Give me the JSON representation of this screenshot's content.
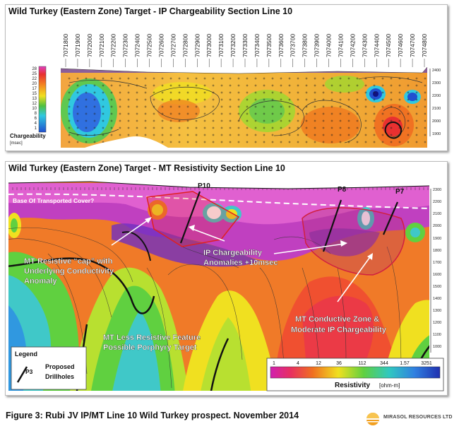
{
  "ip_panel": {
    "title": "Wild Turkey (Eastern Zone) Target  - IP Chargeability Section Line 10",
    "stations": [
      "7071800",
      "7071900",
      "7072000",
      "7072100",
      "7072200",
      "7072300",
      "7072400",
      "7072500",
      "7072600",
      "7072700",
      "7072800",
      "7072900",
      "7073000",
      "7073100",
      "7073200",
      "7073300",
      "7073400",
      "7073500",
      "7073600",
      "7073700",
      "7073800",
      "7073900",
      "7074000",
      "7074100",
      "7074200",
      "7074300",
      "7074400",
      "7074500",
      "7074600",
      "7074700",
      "7074800"
    ],
    "scale_values": [
      "28",
      "25",
      "22",
      "20",
      "17",
      "15",
      "13",
      "12",
      "10",
      "8",
      "6",
      "4",
      "1"
    ],
    "scale_label": "Chargeability",
    "scale_unit": "[msec]",
    "elevations": [
      "2400",
      "2300",
      "2200",
      "2100",
      "2000",
      "1900"
    ]
  },
  "mt_panel": {
    "title": "Wild Turkey (Eastern Zone) Target  - MT Resistivity Section Line 10",
    "elevations": [
      "2300",
      "2200",
      "2100",
      "2000",
      "1900",
      "1800",
      "1700",
      "1600",
      "1500",
      "1400",
      "1300",
      "1200",
      "1100",
      "1000"
    ],
    "annotations": {
      "base_cover": "Base Of Transported Cover?",
      "mt_cap": [
        "MT Resistive “cap” with",
        "Underlying  Conductivity",
        "Anomaly"
      ],
      "ip_anomalies": [
        "IP Chargeability",
        "Anomalies +10msec"
      ],
      "mt_conductive": [
        "MT Conductive Zone &",
        "Moderate IP Chargeability"
      ],
      "less_resistive": [
        "MT Less Resistive Feature",
        "Possible Porphyry Target"
      ]
    },
    "drillholes": [
      "P10",
      "P8",
      "P7"
    ],
    "legend": {
      "title": "Legend",
      "symbol": "P3",
      "label_1": "Proposed",
      "label_2": "Drillholes"
    },
    "resistivity_scale": {
      "values": [
        "1",
        "4",
        "12",
        "36",
        "112",
        "344",
        "1.57",
        "3251"
      ],
      "label": "Resistivity",
      "unit": "[ohm-m]"
    }
  },
  "caption": "Figure 3: Rubi JV IP/MT Line 10 Wild Turkey prospect. November 2014",
  "logo": "MIRASOL RESOURCES LTD",
  "colors": {
    "magenta": "#e040c0",
    "red": "#e83030",
    "orange": "#f59020",
    "yellow": "#f0e020",
    "green": "#50c040",
    "cyan": "#30c8e0",
    "blue": "#2050d0",
    "navy": "#101080"
  }
}
